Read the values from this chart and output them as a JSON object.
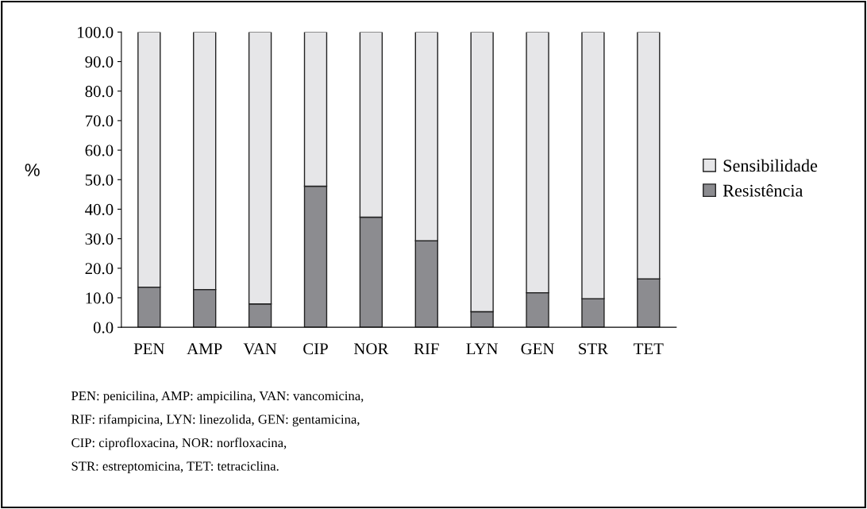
{
  "chart_data": {
    "type": "bar",
    "stacked": true,
    "ylabel": "%",
    "categories": [
      "PEN",
      "AMP",
      "VAN",
      "CIP",
      "NOR",
      "RIF",
      "LYN",
      "GEN",
      "STR",
      "TET"
    ],
    "series": [
      {
        "name": "Resistência",
        "color": "#8c8c90",
        "values": [
          13.6,
          12.8,
          7.9,
          47.8,
          37.3,
          29.3,
          5.3,
          11.7,
          9.7,
          16.4
        ]
      },
      {
        "name": "Sensibilidade",
        "color": "#e6e6e8",
        "values": [
          86.4,
          87.2,
          92.1,
          52.2,
          62.7,
          70.7,
          94.7,
          88.3,
          90.3,
          83.6
        ]
      }
    ],
    "ylim": [
      0,
      100
    ],
    "yticks": [
      {
        "value": 0,
        "label": "0.0"
      },
      {
        "value": 10,
        "label": "10.0"
      },
      {
        "value": 20,
        "label": "20.0"
      },
      {
        "value": 30,
        "label": "30.0"
      },
      {
        "value": 40,
        "label": "40.0"
      },
      {
        "value": 50,
        "label": "50.0"
      },
      {
        "value": 60,
        "label": "60.0"
      },
      {
        "value": 70,
        "label": "70.0"
      },
      {
        "value": 80,
        "label": "80.0"
      },
      {
        "value": 90,
        "label": "90.0"
      },
      {
        "value": 100,
        "label": "100.0"
      }
    ],
    "legend": "right",
    "annotations": [
      "PEN: penicilina, AMP: ampicilina, VAN: vancomicina,",
      "RIF: rifampicina, LYN: linezolida, GEN: gentamicina,",
      "CIP: ciprofloxacina, NOR: norfloxacina,",
      "STR: estreptomicina, TET: tetraciclina."
    ]
  }
}
